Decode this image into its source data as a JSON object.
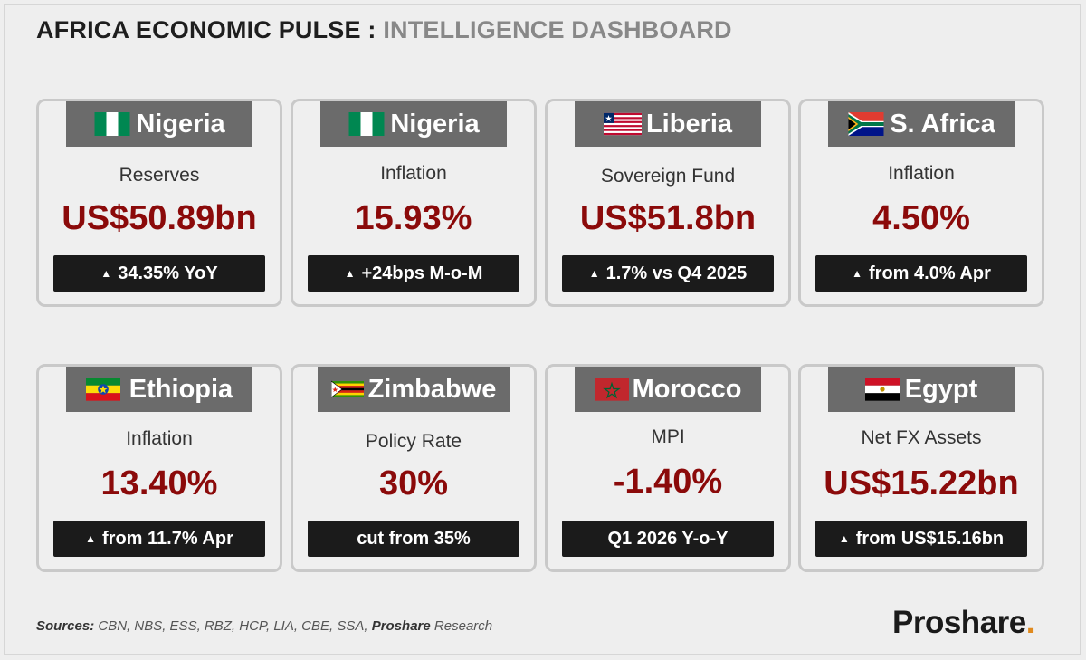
{
  "header": {
    "title_main": "AFRICA ECONOMIC PULSE :",
    "title_sub": "INTELLIGENCE DASHBOARD"
  },
  "cards": [
    {
      "country": "Nigeria",
      "flag": "nigeria-flag-icon",
      "metric": "Reserves",
      "value": "US$50.89bn",
      "badge": "34.35% YoY",
      "badge_arrow": "▲"
    },
    {
      "country": "Nigeria",
      "flag": "nigeria-flag-icon",
      "metric": "Inflation",
      "value": "15.93%",
      "badge": "+24bps M-o-M",
      "badge_arrow": "▲"
    },
    {
      "country": "Liberia",
      "flag": "liberia-flag-icon",
      "metric": "Sovereign Fund",
      "value": "US$51.8bn",
      "badge": "1.7% vs Q4 2025",
      "badge_arrow": "▲"
    },
    {
      "country": "S. Africa",
      "flag": "south-africa-flag-icon",
      "metric": "Inflation",
      "value": "4.50%",
      "badge": "from 4.0% Apr",
      "badge_arrow": "▲"
    },
    {
      "country": "Ethiopia",
      "flag": "ethiopia-flag-icon",
      "metric": "Inflation",
      "value": "13.40%",
      "badge": "from 11.7% Apr",
      "badge_arrow": "▲"
    },
    {
      "country": "Zimbabwe",
      "flag": "zimbabwe-flag-icon",
      "metric": "Policy Rate",
      "value": "30%",
      "badge": "cut from 35%",
      "badge_arrow": ""
    },
    {
      "country": "Morocco",
      "flag": "morocco-flag-icon",
      "metric": "MPI",
      "value": "-1.40%",
      "badge": "Q1 2026 Y-o-Y",
      "badge_arrow": ""
    },
    {
      "country": "Egypt",
      "flag": "egypt-flag-icon",
      "metric": "Net FX Assets",
      "value": "US$15.22bn",
      "badge": "from US$15.16bn",
      "badge_arrow": "▲"
    }
  ],
  "footer": {
    "sources_label": "Sources:",
    "sources_list": "CBN, NBS, ESS, RBZ, HCP, LIA, CBE, SSA,",
    "sources_brand": "Proshare",
    "sources_suffix": "Research",
    "logo_text": "Proshare",
    "logo_dot": "."
  },
  "colors": {
    "value_red": "#8b0a0a",
    "tab_grey": "#6b6b6b",
    "badge_black": "#1b1b1b",
    "logo_dot": "#e08a1e"
  }
}
